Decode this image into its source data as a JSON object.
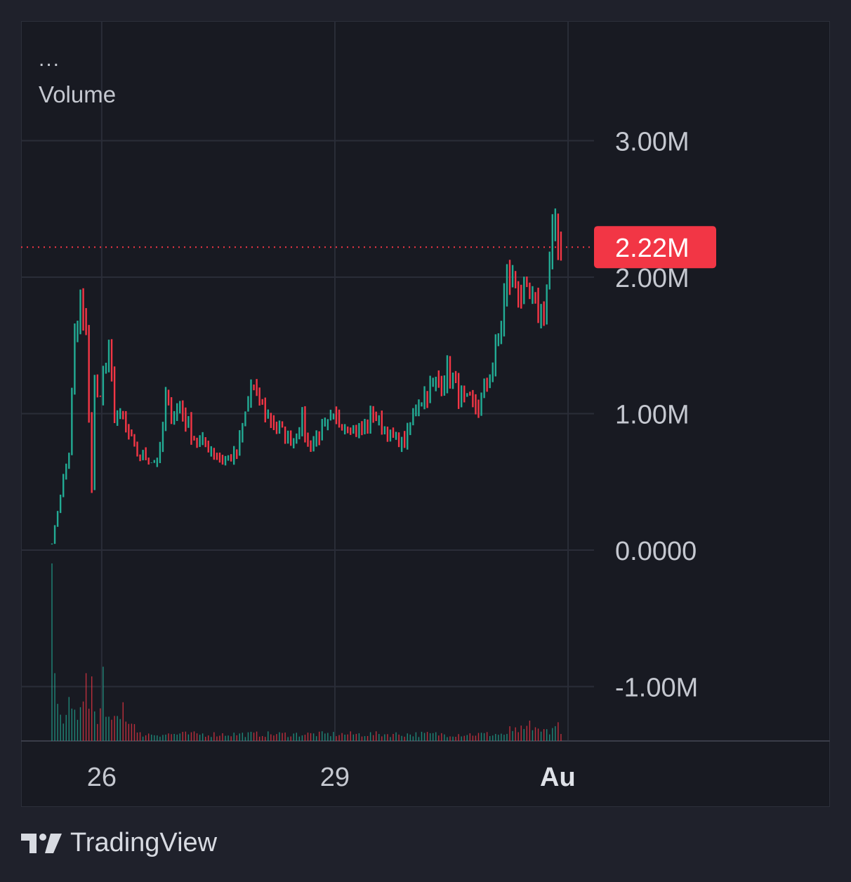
{
  "legend": {
    "menu_glyph": "...",
    "indicator": "Volume"
  },
  "brand": {
    "name": "TradingView",
    "icon": "tradingview-logo-icon"
  },
  "colors": {
    "background": "#181a22",
    "grid": "#2a2d38",
    "up": "#22ab94",
    "down": "#f23645",
    "axis_text": "#c5c8d0",
    "last_value_bg": "#f23645"
  },
  "chart_data": {
    "type": "bar",
    "title": "Volume",
    "ylim": [
      -1400000,
      3900000
    ],
    "y_ticks": [
      {
        "label": "3.00M",
        "value": 3000000
      },
      {
        "label": "2.00M",
        "value": 2000000
      },
      {
        "label": "1.00M",
        "value": 1000000
      },
      {
        "label": "0.0000",
        "value": 0
      },
      {
        "label": "-1.00M",
        "value": -1000000
      }
    ],
    "x_ticks": [
      {
        "label": "26",
        "index": 17
      },
      {
        "label": "29",
        "index": 99
      },
      {
        "label": "Au",
        "index": 181
      }
    ],
    "last_value": {
      "label": "2.22M",
      "value": 2220000
    },
    "bar_count": 180,
    "shape": {
      "index": [
        0,
        4,
        6,
        8,
        10,
        12,
        13,
        14,
        15,
        16,
        20,
        22,
        25,
        30,
        36,
        38,
        40,
        42,
        45,
        50,
        55,
        60,
        65,
        70,
        75,
        80,
        85,
        88,
        90,
        94,
        99,
        104,
        109,
        113,
        118,
        124,
        129,
        134,
        139,
        144,
        150,
        155,
        158,
        160,
        163,
        166,
        169,
        173,
        176,
        179
      ],
      "close": [
        0.05,
        0.52,
        0.72,
        1.55,
        1.78,
        1.52,
        1.0,
        0.45,
        1.25,
        1.1,
        1.45,
        1.0,
        0.95,
        0.7,
        0.65,
        0.72,
        1.1,
        1.0,
        1.05,
        0.82,
        0.75,
        0.65,
        0.7,
        1.2,
        1.0,
        0.88,
        0.8,
        0.95,
        0.75,
        0.85,
        0.95,
        0.92,
        0.87,
        1.0,
        0.85,
        0.78,
        1.1,
        1.2,
        1.3,
        1.1,
        1.05,
        1.35,
        1.65,
        2.0,
        1.95,
        1.85,
        1.8,
        1.75,
        2.3,
        2.22
      ]
    },
    "volume_shape": [
      {
        "index": 0,
        "value": 0.55
      },
      {
        "index": 1,
        "value": 0.21
      },
      {
        "index": 12,
        "value": 0.21
      },
      {
        "index": 14,
        "value": 0.2
      },
      {
        "index": 18,
        "value": 0.23
      },
      {
        "index": 25,
        "value": 0.12
      },
      {
        "index": 168,
        "value": 0.063
      },
      {
        "index": 178,
        "value": 0.058
      }
    ]
  }
}
